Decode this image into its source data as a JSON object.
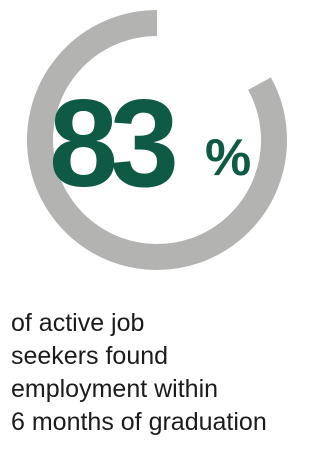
{
  "chart_data": {
    "type": "gauge",
    "value": 83,
    "unit": "%",
    "max": 100,
    "colors": {
      "ring": "#b3b4b2",
      "value_text": "#0f5a44",
      "caption_text": "#1b1b1b"
    }
  },
  "stat": {
    "number": "83",
    "unit": "%"
  },
  "caption": {
    "lines": [
      "of active job",
      "seekers found",
      "employment within",
      "6 months of graduation"
    ]
  }
}
